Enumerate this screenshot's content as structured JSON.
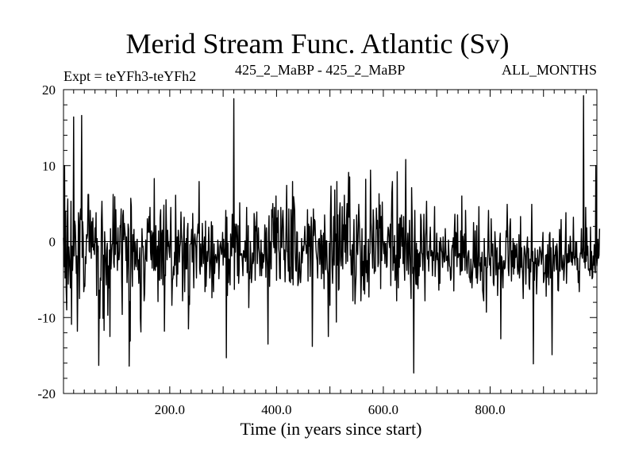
{
  "chart_data": {
    "type": "line",
    "title": "Merid Stream Func. Atlantic (Sv)",
    "experiment_label": "Expt = teYFh3-teYFh2",
    "subtitle_center": "425_2_MaBP - 425_2_MaBP",
    "subtitle_right": "ALL_MONTHS",
    "xlabel": "Time (in years since start)",
    "ylabel": "",
    "xlim": [
      1,
      1000
    ],
    "ylim": [
      -20,
      20
    ],
    "x_ticks": [
      200,
      400,
      600,
      800
    ],
    "x_tick_labels": [
      "200.0",
      "400.0",
      "600.0",
      "800.0"
    ],
    "y_ticks": [
      -20,
      -10,
      0,
      10,
      20
    ],
    "y_tick_labels": [
      "-20",
      "-10",
      "0",
      "10",
      "20"
    ],
    "zero_line": true,
    "series": [
      {
        "name": "Merid Stream Func. Atlantic",
        "color": "#000000",
        "x_start": 1,
        "x_step": 1,
        "values": [
          0.5,
          -3.3,
          10,
          -4.8,
          4,
          -6.2,
          -9,
          2.3,
          5.6,
          -5.6,
          -0.7,
          -2.2,
          -3.9,
          -6.1,
          5.3,
          -10.9,
          -0.6,
          -3.8,
          -1.2,
          16.4,
          -1.9,
          2.7,
          2.1,
          -0.2,
          -4.2,
          -1.9,
          -11.8,
          -5.1,
          3.8,
          1.8,
          -7.5,
          3.1,
          4.3,
          2.9,
          16.6,
          -2.1,
          2.6,
          0.6,
          -6.6,
          -5.6,
          -5.9,
          -2,
          -2.9,
          0.9,
          0.4,
          0.9,
          6.2,
          6.2,
          -1.2,
          -1.4,
          4.1,
          1.4,
          -2.2,
          2.6,
          -0.7,
          3.1,
          -1.1,
          -0.4,
          -1.7,
          1.8,
          -0.1,
          3.8,
          -7.1,
          0.4,
          -1.3,
          -0.6,
          -16.3,
          -6.4,
          -10.1,
          -4.8,
          -5.1,
          2.7,
          5.3,
          1.2,
          -10.1,
          -1.8,
          -11.7,
          1.3,
          -0.6,
          -3.1,
          -5.7,
          -1.1,
          -0.2,
          -9.7,
          -3.2,
          -6.1,
          -1.1,
          -12.5,
          1.7,
          -3.6,
          -1.7,
          -0.4,
          -0.2,
          6.2,
          -2.8,
          -3.4,
          5.9,
          -1.7,
          4.2,
          -0.3,
          -0.1,
          -3.8,
          1.8,
          -2.4,
          -2.4,
          -1.4,
          2.1,
          1.9,
          4.3,
          -5,
          -9.6,
          3.4,
          4.1,
          0.2,
          2.4,
          1.4,
          0.6,
          -2.5,
          0.6,
          -5.4,
          -3.2,
          2.3,
          1.6,
          -16.4,
          -7.9,
          -13.1,
          5.7,
          4.6,
          -3.3,
          -5.9,
          0.9,
          -1.3,
          1.6,
          -3.7,
          -0.1,
          -2.6,
          -3.3,
          -0.3,
          0.3,
          -3.7,
          -2.4,
          -5.5,
          -2.4,
          -0.8,
          -10.1,
          -11.9,
          -2.4,
          1.7,
          -0.7,
          -0.6,
          -2.9,
          -7.8,
          -6.8,
          -1.9,
          0.2,
          -2.3,
          -2.6,
          3,
          1.2,
          1.3,
          3.3,
          1.2,
          4.5,
          -1.4,
          -2.4,
          1.4,
          -3.5,
          0.7,
          1.2,
          -3.8,
          8.3,
          -3.5,
          -3.8,
          2.1,
          -3.3,
          -2.4,
          -0.6,
          -7.9,
          1.4,
          -4.8,
          -5.1,
          3.1,
          4.2,
          -4.9,
          0.8,
          1.5,
          -5.7,
          0.5,
          4.8,
          -11.8,
          -4.4,
          -4.5,
          5.5,
          1.1,
          -2.4,
          1.5,
          -0.6,
          -0.1,
          -1.3,
          -2.1,
          0.6,
          4.5,
          -1.6,
          -8.4,
          -5.1,
          -4.8,
          -3.3,
          -4.4,
          -1.4,
          -3.1,
          6.1,
          -1.1,
          -5.9,
          0.6,
          -4.3,
          1.5,
          0.3,
          -2.7,
          -0.7,
          -0.2,
          3.9,
          0.9,
          -0.2,
          -7.8,
          -4.3,
          0.9,
          3.2,
          -6.6,
          -0.2,
          -3.6,
          0.4,
          -3.6,
          1.5,
          2.4,
          -11.5,
          -7.2,
          -8.3,
          -0.4,
          -0.3,
          -0.2,
          1.6,
          -2.7,
          3.7,
          -1.2,
          -6.1,
          0.3,
          1,
          -0.1,
          -0.8,
          -4.8,
          0.4,
          1.2,
          2.3,
          1.1,
          7.9,
          -3.5,
          -4.3,
          -0.3,
          -2.7,
          -3.3,
          2.4,
          -0.5,
          -2.9,
          -0.8,
          0.6,
          -6.6,
          2.7,
          -5.9,
          -3.4,
          -1.3,
          -2.6,
          -1.2,
          1.9,
          -0.7,
          -4.8,
          -3.6,
          -1.8,
          2.6,
          -7.4,
          2.1,
          -4.6,
          -6.6,
          -0.3,
          -4.2,
          -2.2,
          -1.7,
          -2.1,
          -2.8,
          -2.3,
          0.2,
          -0.8,
          -4.9,
          -2.4,
          -0.6,
          -0.1,
          -0.8,
          -1.7,
          -1.1,
          1.2,
          -3.1,
          0.3,
          -1.9,
          -2.1,
          -0.7,
          4.1,
          -15.3,
          3.2,
          -7.1,
          -0.2,
          -5.4,
          -2.3,
          -2.6,
          -5.7,
          1,
          -0.7,
          -1.9,
          3.6,
          -0.7,
          -0.8,
          18.8,
          -6.3,
          2.3,
          -1.4,
          1.8,
          2.3,
          0.1,
          -4.5,
          2.1,
          -5.5,
          -3.7,
          5.1,
          -1.8,
          -1.6,
          -1.8,
          -1.6,
          -2.7,
          -4.5,
          -1.2,
          -1.3,
          -2.1,
          0.1,
          -2.6,
          -1.7,
          4.5,
          -4.1,
          -3.2,
          2.1,
          -8.7,
          -4,
          -4.9,
          0,
          -2.4,
          -5.4,
          -4.1,
          -1.5,
          -2.9,
          -2.5,
          3.7,
          2.5,
          -5.1,
          2,
          1.4,
          3.9,
          -2.9,
          -0.5,
          1.8,
          -0.8,
          -1.7,
          -4.5,
          -2.1,
          0.2,
          -4.5,
          -1.5,
          -3.5,
          -1.7,
          -2.7,
          -1.7,
          2.2,
          0.7,
          -4.7,
          1.8,
          -1.4,
          -3.6,
          -13.5,
          1.2,
          3.4,
          -5.9,
          0,
          -0.7,
          -3.6,
          4.2,
          3.2,
          5,
          0.2,
          -0.8,
          4.5,
          -1.5,
          -0.3,
          6,
          -5.1,
          3.1,
          1.2,
          4.1,
          -0.8,
          -1.6,
          -4.8,
          -4.9,
          4.5,
          -0.7,
          -0.8,
          2.9,
          4.1,
          1.6,
          -2.4,
          -1.1,
          -5.3,
          -1.3,
          2.4,
          7.4,
          -1.3,
          -1.4,
          -3.9,
          4.3,
          -5.2,
          -3.4,
          -5.4,
          4.2,
          1.6,
          -4.9,
          7.9,
          -5.7,
          5.9,
          5.1,
          4.1,
          -1.5,
          -3.8,
          -3.9,
          1.3,
          1.2,
          -5.8,
          -5.4,
          -3.1,
          -1.4,
          -4.8,
          -5.4,
          -3.8,
          0.4,
          -2.8,
          -1.3,
          -0.6,
          -1.2,
          0.3,
          2,
          -0.3,
          -0.5,
          -1.6,
          -1.2,
          4.2,
          -5.2,
          2.3,
          -0.6,
          2,
          -4.6,
          -0.8,
          3.2,
          1.3,
          -13.8,
          -3.7,
          4.3,
          0.8,
          2.9,
          2.7,
          0.5,
          -1.1,
          -2,
          -2.5,
          -4.8,
          -0.3,
          0.3,
          0.4,
          -3,
          -1.3,
          1.5,
          -4.9,
          0.8,
          -1.5,
          -4.2,
          1.1,
          -6.2,
          3.5,
          0.6,
          -3.7,
          0.1,
          0.1,
          -3.5,
          -4.3,
          -12.5,
          -4,
          -0.2,
          -8.4,
          3.7,
          7.3,
          0.4,
          -3.4,
          -5.5,
          -1.8,
          3.3,
          -3.1,
          6.8,
          0.1,
          1,
          -10.6,
          7.9,
          -3.1,
          3.5,
          -6.4,
          -6.2,
          3.6,
          5.1,
          -2.4,
          -3.2,
          -1.3,
          4.6,
          -3.6,
          2.2,
          0.2,
          6.1,
          -1.4,
          2.2,
          -2.9,
          2.9,
          5,
          -2.6,
          4.6,
          9.1,
          3.2,
          8.5,
          -1.8,
          -1.1,
          -4.4,
          -3.6,
          -0.4,
          -7.8,
          -0.5,
          2.9,
          -2.7,
          -8.2,
          -5.9,
          -4.4,
          3.5,
          -0.7,
          -1.7,
          1.6,
          4.9,
          2.6,
          0.4,
          -1.6,
          -7.8,
          -4.8,
          1.7,
          -4.5,
          -2.6,
          -6.4,
          -0.5,
          -6.9,
          -2.6,
          8.2,
          -4.1,
          -2.5,
          -5.3,
          -2.9,
          0.3,
          -7.3,
          -1.7,
          -1.5,
          9.4,
          2.5,
          1.1,
          -1,
          -3.5,
          4.2,
          2.6,
          -4.2,
          -3.4,
          -3.9,
          -0.3,
          4.4,
          1.7,
          2.8,
          -3.3,
          -2.8,
          6.3,
          1.8,
          4.8,
          -6.2,
          3.3,
          -2.5,
          5.2,
          0.5,
          -0.5,
          -1.6,
          -0.1,
          -2.9,
          -0.3,
          -0.2,
          -3.4,
          -3.2,
          0.5,
          1.9,
          1.5,
          -0.1,
          -0.8,
          2.3,
          -5.8,
          2.1,
          6.4,
          7.9,
          -3.8,
          -0.7,
          -2.8,
          0.8,
          -5.1,
          -2.9,
          -1.8,
          -7.8,
          9.2,
          -3.2,
          -6.1,
          2.3,
          -3.4,
          3.1,
          -2.2,
          3,
          3.5,
          -0.6,
          1.8,
          -2.9,
          3.3,
          -2.5,
          -5.1,
          2.1,
          10.8,
          -0.9,
          -3.8,
          -0.4,
          1.1,
          -4.3,
          -1.5,
          2.8,
          -1.3,
          -4.9,
          -7.5,
          7.1,
          2.8,
          -4.2,
          -3.4,
          -17.3,
          -0.6,
          4.1,
          -3.6,
          -5.6,
          -0.2,
          -5.7,
          -1.1,
          -6.2,
          -1.6,
          -4.5,
          -1.4,
          -3.3,
          3.6,
          2.8,
          -1.5,
          -1.7,
          -3.8,
          -0.7,
          3.6,
          -2.7,
          -7.8,
          0.5,
          1.8,
          5.3,
          -1.7,
          -2.3,
          -1.3,
          -3.9,
          -1.2,
          -0.2,
          1.9,
          -1.9,
          -1.2,
          -1.2,
          -4.5,
          -1.4,
          -2.5,
          -0.1,
          4.6,
          -4.6,
          -2.7,
          -1.7,
          1.1,
          -2.4,
          -1.5,
          -3.2,
          -6.4,
          -0.1,
          -5.5,
          0.5,
          -0.3,
          -1.2,
          -1.5,
          -3.4,
          0.6,
          -1.4,
          -2.7,
          -2.6,
          1.7,
          -0.8,
          -2.5,
          -2.4,
          -1.9,
          -3.9,
          0.2,
          -1.7,
          -3.2,
          -3.4,
          -5.1,
          -4.8,
          -1.3,
          -0.5,
          -0.7,
          0.5,
          -6.5,
          1.3,
          3.6,
          -1.9,
          1.2,
          1,
          -3.3,
          3.5,
          -2.1,
          -1.9,
          -1.6,
          -1.6,
          -4.4,
          1.4,
          -3.9,
          6,
          -3.8,
          0.7,
          -0.6,
          -2.1,
          1,
          -3.8,
          4.1,
          -0.2,
          -3.2,
          -4.2,
          -2.1,
          -1.5,
          -1.2,
          -4.7,
          -4.8,
          -5.4,
          -2.3,
          -3.9,
          -6.1,
          -4.4,
          -2.8,
          2.5,
          -2.4,
          -3.4,
          1.4,
          -3.3,
          -4.8,
          2.1,
          -5.5,
          -4.1,
          -1.2,
          4.6,
          -3.2,
          -2.8,
          -5.1,
          -2.1,
          -3.9,
          -1.4,
          -6.4,
          -7.1,
          -7.8,
          0.4,
          -2.9,
          -3.2,
          -2.1,
          -9.3,
          -3.5,
          -3.4,
          0.2,
          4.1,
          -1.4,
          -3.1,
          -2.2,
          -4.5,
          3,
          -0.6,
          -1.9,
          -0.3,
          -5.4,
          -5.8,
          -2.9,
          1.3,
          -0.4,
          -4.4,
          -1.5,
          -0.8,
          -7.1,
          -3.8,
          -2.8,
          -3.6,
          0,
          1.1,
          -12.8,
          -1.9,
          -2.1,
          -4.2,
          -6.1,
          -2.6,
          -2.5,
          -3.6,
          -3.4,
          -2.2,
          1.4,
          0.6,
          4.9,
          0.8,
          -3.5,
          -4.5,
          -1.8,
          1.9,
          3,
          -1.9,
          -5.2,
          -1.2,
          -3.3,
          0.4,
          -4.3,
          -0.2,
          -3.5,
          -0.5,
          -2.1,
          -1.7,
          -0.3,
          -3.3,
          -4.3,
          -3.6,
          0.9,
          -4.8,
          -3.5,
          3.3,
          -3.4,
          -0.8,
          -3.1,
          -4.5,
          -7.5,
          -2.4,
          -0.6,
          -1,
          -2.1,
          -5.6,
          -1.8,
          -0.6,
          0.6,
          -3.5,
          -0.9,
          -5.8,
          -6.3,
          -2.3,
          -4,
          -1.1,
          4.9,
          -2.6,
          -1.3,
          -16.1,
          -2.7,
          -5.1,
          -0.9,
          -2.9,
          -2.2,
          -6.9,
          -4.2,
          -1.1,
          -2.8,
          -3.2,
          -2.6,
          -0.7,
          -1.1,
          -1.4,
          -3,
          -2.1,
          -0.4,
          1.2,
          -5.4,
          -5,
          -4.1,
          -4.2,
          -1.8,
          -7.2,
          -1.7,
          -4.7,
          -0.4,
          -3.6,
          -5.7,
          0.9,
          1.2,
          -4.8,
          -0.8,
          -4.1,
          -14.9,
          -4.4,
          0.4,
          -1.5,
          -3.9,
          -1.8,
          -1.8,
          -0.6,
          -3.7,
          -0.3,
          -1.4,
          -6.4,
          -6.5,
          -2.8,
          1.6,
          -3.9,
          -0.2,
          2.9,
          -3.3,
          -3.7,
          -2.7,
          -1.8,
          -5.1,
          -3.7,
          -2.2,
          -0.1,
          3.8,
          -5.5,
          -2.6,
          -1.6,
          -2.8,
          -0.4,
          -2.7,
          -2.6,
          0.7,
          -0.3,
          -2.7,
          -1.4,
          -3.1,
          -1.5,
          3.2,
          -2.2,
          -2,
          -3.1,
          -0.1,
          -2.1,
          -0.1,
          -3.7,
          -2.2,
          -5.4,
          -3.9,
          -6.6,
          -2.4,
          -1.5,
          -1.6,
          1.7,
          -1.9,
          -2.2,
          -0.8,
          19.2,
          -2.7,
          -1.4,
          -3.5,
          4.5,
          -2.6,
          1.8,
          -1.8,
          -0.6,
          -3.7,
          -3.8,
          -3.6,
          -4.5,
          1.9,
          -3.7,
          -1.3,
          -4.9,
          -4.7,
          -1.9,
          -3.1,
          -0.4,
          -3.5,
          -4.1,
          10,
          -1.5,
          -3.2,
          -2.2,
          0.3,
          -2.2,
          -1.8,
          1.7
        ]
      }
    ]
  }
}
